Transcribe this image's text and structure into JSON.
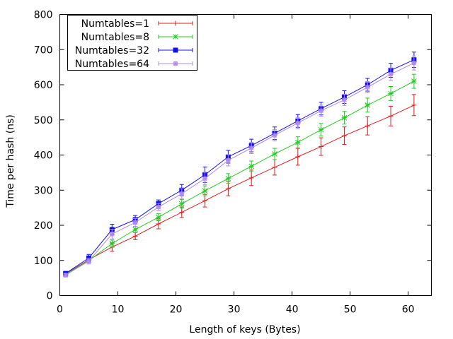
{
  "chart_data": {
    "type": "line",
    "title": "",
    "xlabel": "Length of keys (Bytes)",
    "ylabel": "Time per hash (ns)",
    "xlim": [
      0,
      64
    ],
    "ylim": [
      0,
      800
    ],
    "xticks": [
      0,
      10,
      20,
      30,
      40,
      50,
      60
    ],
    "yticks": [
      0,
      100,
      200,
      300,
      400,
      500,
      600,
      700,
      800
    ],
    "grid": false,
    "legend_position": "top-left",
    "x": [
      1,
      5,
      9,
      13,
      17,
      21,
      25,
      29,
      33,
      37,
      41,
      45,
      49,
      53,
      57,
      61
    ],
    "series": [
      {
        "name": "Numtables=1",
        "color": "#e41a1c",
        "marker": "plus",
        "values": [
          62,
          102,
          138,
          169,
          204,
          237,
          270,
          304,
          335,
          365,
          395,
          424,
          455,
          483,
          511,
          542
        ],
        "err": [
          6,
          6,
          12,
          10,
          14,
          15,
          18,
          20,
          22,
          22,
          24,
          25,
          25,
          26,
          28,
          30
        ]
      },
      {
        "name": "Numtables=8",
        "color": "#22cc22",
        "marker": "star",
        "values": [
          60,
          100,
          148,
          188,
          223,
          261,
          298,
          333,
          368,
          403,
          436,
          472,
          506,
          542,
          575,
          610
        ],
        "err": [
          5,
          6,
          10,
          9,
          10,
          12,
          14,
          14,
          15,
          16,
          16,
          18,
          18,
          20,
          20,
          20
        ]
      },
      {
        "name": "Numtables=32",
        "color": "#1010ee",
        "marker": "square",
        "values": [
          63,
          107,
          188,
          216,
          262,
          300,
          344,
          395,
          427,
          462,
          497,
          532,
          565,
          600,
          641,
          671
        ],
        "err": [
          5,
          10,
          15,
          12,
          10,
          16,
          22,
          18,
          18,
          18,
          18,
          18,
          18,
          18,
          20,
          22
        ]
      },
      {
        "name": "Numtables=64",
        "color": "#b088f0",
        "marker": "box-star",
        "values": [
          58,
          98,
          175,
          208,
          252,
          290,
          333,
          385,
          420,
          456,
          491,
          526,
          557,
          593,
          630,
          662
        ],
        "err": [
          5,
          8,
          14,
          11,
          10,
          14,
          18,
          16,
          16,
          16,
          16,
          16,
          16,
          16,
          18,
          20
        ]
      }
    ]
  }
}
